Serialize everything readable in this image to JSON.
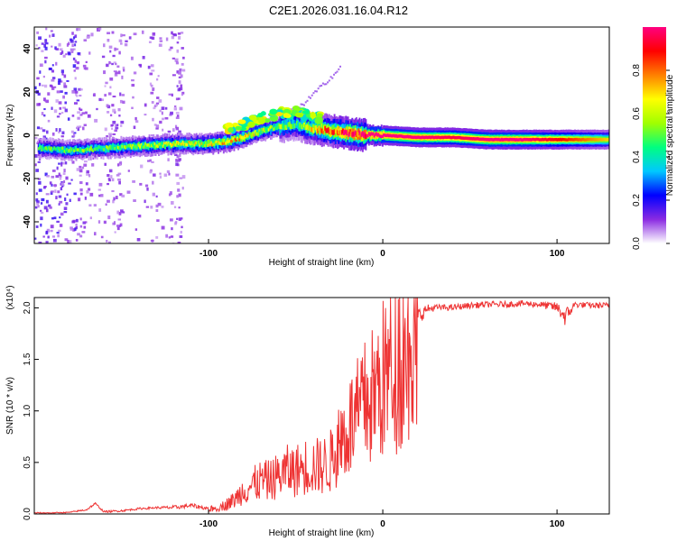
{
  "figure_title": "C2E1.2026.031.16.04.R12",
  "chart_data": [
    {
      "type": "heatmap",
      "title": "C2E1.2026.031.16.04.R12",
      "xlabel": "Height of straight line (km)",
      "ylabel": "Frequency (Hz)",
      "xlim": [
        -200,
        130
      ],
      "ylim": [
        -50,
        50
      ],
      "x_ticks": [
        -100,
        0,
        100
      ],
      "x_tick_labels": [
        "-100",
        "0",
        "100"
      ],
      "y_ticks": [
        -40,
        -20,
        0,
        20,
        40
      ],
      "y_tick_labels": [
        "-40",
        "-20",
        "0",
        "20",
        "40"
      ],
      "colorbar": {
        "label": "Normalized spectral amplitude",
        "range": [
          0,
          1
        ],
        "ticks": [
          0.0,
          0.2,
          0.4,
          0.6,
          0.8
        ],
        "tick_labels": [
          "0.0",
          "0.2",
          "0.4",
          "0.6",
          "0.8"
        ],
        "colormap": [
          "#ffffff",
          "#8a2be2",
          "#0000ff",
          "#00c8ff",
          "#00ff80",
          "#a0ff00",
          "#ffff00",
          "#ff8000",
          "#ff0000",
          "#ff0080"
        ]
      },
      "ridge": {
        "description_points_x": [
          -195,
          -180,
          -160,
          -140,
          -120,
          -100,
          -90,
          -80,
          -70,
          -60,
          -50,
          -40,
          -30,
          -20,
          -10,
          0,
          20,
          40,
          60,
          80,
          100,
          130
        ],
        "center_freq": [
          -6,
          -7,
          -6,
          -5,
          -4,
          -4,
          -3,
          -1,
          2,
          4,
          5,
          3,
          2,
          1,
          0,
          0,
          -1,
          -1,
          -2,
          -2,
          -2,
          -2
        ],
        "peak_amplitude": [
          0.45,
          0.5,
          0.5,
          0.55,
          0.6,
          0.65,
          0.7,
          0.7,
          0.6,
          0.55,
          0.45,
          0.7,
          0.85,
          0.95,
          1.0,
          1.0,
          1.0,
          0.95,
          1.0,
          1.0,
          0.9,
          0.7
        ]
      }
    },
    {
      "type": "line",
      "xlabel": "Height of straight line (km)",
      "ylabel": "SNR (10 * v/v)",
      "y_multiplier": "(x10⁴)",
      "xlim": [
        -200,
        130
      ],
      "ylim": [
        0,
        2.1
      ],
      "x_ticks": [
        -100,
        0,
        100
      ],
      "x_tick_labels": [
        "-100",
        "0",
        "100"
      ],
      "y_ticks": [
        0.0,
        0.5,
        1.0,
        1.5,
        2.0
      ],
      "y_tick_labels": [
        "0.0",
        "0.5",
        "1.0",
        "1.5",
        "2.0"
      ],
      "series": [
        {
          "name": "SNR",
          "color": "#ee3333",
          "x": [
            -200,
            -190,
            -180,
            -170,
            -165,
            -160,
            -150,
            -140,
            -130,
            -120,
            -110,
            -100,
            -95,
            -90,
            -85,
            -80,
            -75,
            -70,
            -65,
            -60,
            -55,
            -50,
            -45,
            -40,
            -35,
            -30,
            -25,
            -20,
            -15,
            -10,
            -5,
            0,
            5,
            10,
            15,
            20,
            25,
            30,
            40,
            50,
            60,
            70,
            80,
            90,
            100,
            105,
            110,
            120,
            130
          ],
          "values": [
            0.01,
            0.01,
            0.015,
            0.04,
            0.1,
            0.02,
            0.03,
            0.05,
            0.06,
            0.06,
            0.08,
            0.05,
            0.06,
            0.1,
            0.15,
            0.25,
            0.3,
            0.35,
            0.35,
            0.4,
            0.45,
            0.45,
            0.5,
            0.5,
            0.5,
            0.55,
            0.75,
            0.9,
            1.0,
            1.15,
            1.25,
            1.4,
            1.55,
            1.65,
            1.8,
            1.9,
            1.98,
            2.0,
            2.0,
            2.02,
            2.03,
            2.03,
            2.04,
            2.03,
            2.0,
            1.9,
            2.03,
            2.02,
            2.02
          ],
          "noise_amplitude": [
            0.005,
            0.005,
            0.005,
            0.01,
            0.01,
            0.01,
            0.01,
            0.01,
            0.01,
            0.02,
            0.02,
            0.02,
            0.05,
            0.1,
            0.15,
            0.2,
            0.25,
            0.28,
            0.3,
            0.3,
            0.3,
            0.32,
            0.35,
            0.35,
            0.35,
            0.35,
            0.4,
            0.45,
            0.4,
            0.3,
            0.3,
            0.25,
            0.2,
            0.2,
            0.15,
            0.1,
            0.05,
            0.03,
            0.03,
            0.03,
            0.03,
            0.03,
            0.03,
            0.03,
            0.05,
            0.1,
            0.03,
            0.03,
            0.03
          ]
        }
      ]
    }
  ]
}
